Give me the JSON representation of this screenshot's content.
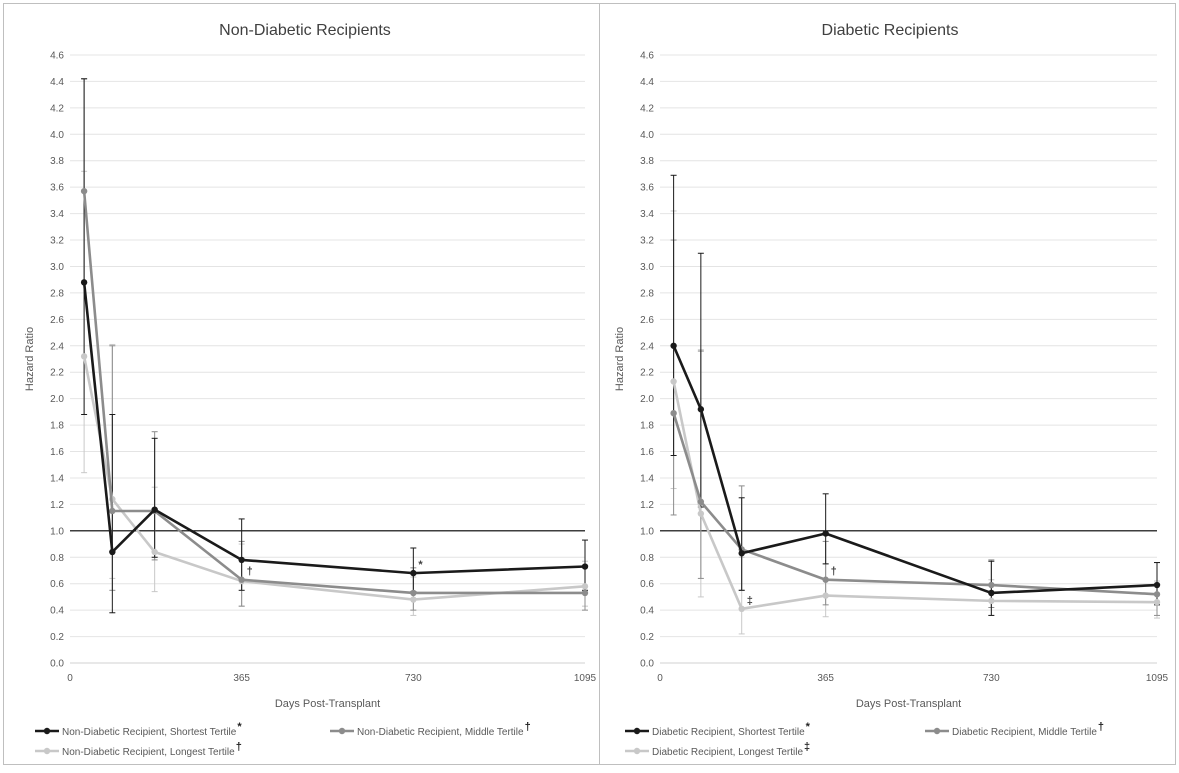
{
  "colors": {
    "shortest": "#1a1a1a",
    "middle": "#8c8c8c",
    "longest": "#c8c8c8",
    "grid": "#e4e4e4",
    "ref_line": "#000000",
    "text": "#595959",
    "title": "#404040",
    "border": "#bfbfbf"
  },
  "chart_data": [
    {
      "type": "line",
      "title": "Non-Diabetic Recipients",
      "xlabel": "Days Post-Transplant",
      "ylabel": "Hazard Ratio",
      "xlim": [
        0,
        1095
      ],
      "ylim": [
        0,
        4.6
      ],
      "xticks": [
        "0",
        "365",
        "730",
        "1095"
      ],
      "yticks": [
        "0.0",
        "0.2",
        "0.4",
        "0.6",
        "0.8",
        "1.0",
        "1.2",
        "1.4",
        "1.6",
        "1.8",
        "2.0",
        "2.2",
        "2.4",
        "2.6",
        "2.8",
        "3.0",
        "3.2",
        "3.4",
        "3.6",
        "3.8",
        "4.0",
        "4.2",
        "4.4",
        "4.6"
      ],
      "reference_line": 1.0,
      "grid": true,
      "legend_position": "bottom",
      "series": [
        {
          "name": "Non-Diabetic Recipient, Shortest Tertile",
          "marker": "*",
          "color_key": "shortest",
          "x": [
            30,
            90,
            180,
            365,
            730,
            1095
          ],
          "y": [
            2.88,
            0.84,
            1.16,
            0.78,
            0.68,
            0.73
          ],
          "err_low": [
            1.88,
            0.38,
            0.8,
            0.55,
            0.54,
            0.55
          ],
          "err_high": [
            4.42,
            1.88,
            1.7,
            1.09,
            0.87,
            0.93
          ]
        },
        {
          "name": "Non-Diabetic Recipient, Middle Tertile",
          "marker": "†",
          "color_key": "middle",
          "x": [
            30,
            90,
            180,
            365,
            730,
            1095
          ],
          "y": [
            3.57,
            1.15,
            1.15,
            0.63,
            0.53,
            0.53
          ],
          "err_low": [
            2.88,
            0.55,
            0.78,
            0.43,
            0.4,
            0.4
          ],
          "err_high": [
            4.42,
            2.4,
            1.75,
            0.92,
            0.72,
            0.72
          ]
        },
        {
          "name": "Non-Diabetic Recipient, Longest Tertile",
          "marker": "†",
          "color_key": "longest",
          "x": [
            30,
            90,
            180,
            365,
            730,
            1095
          ],
          "y": [
            2.32,
            1.24,
            0.84,
            0.62,
            0.48,
            0.58
          ],
          "err_low": [
            1.44,
            0.64,
            0.54,
            0.43,
            0.36,
            0.43
          ],
          "err_high": [
            3.72,
            2.41,
            1.33,
            0.9,
            0.65,
            0.77
          ]
        }
      ],
      "annotations": [
        {
          "text": "†",
          "x": 365,
          "y": 0.63,
          "series": "middle"
        },
        {
          "text": "*",
          "x": 730,
          "y": 0.68,
          "series": "shortest"
        }
      ]
    },
    {
      "type": "line",
      "title": "Diabetic Recipients",
      "xlabel": "Days Post-Transplant",
      "ylabel": "Hazard Ratio",
      "xlim": [
        0,
        1095
      ],
      "ylim": [
        0,
        4.6
      ],
      "xticks": [
        "0",
        "365",
        "730",
        "1095"
      ],
      "yticks": [
        "0.0",
        "0.2",
        "0.4",
        "0.6",
        "0.8",
        "1.0",
        "1.2",
        "1.4",
        "1.6",
        "1.8",
        "2.0",
        "2.2",
        "2.4",
        "2.6",
        "2.8",
        "3.0",
        "3.2",
        "3.4",
        "3.6",
        "3.8",
        "4.0",
        "4.2",
        "4.4",
        "4.6"
      ],
      "reference_line": 1.0,
      "grid": true,
      "legend_position": "bottom",
      "series": [
        {
          "name": "Diabetic Recipient, Shortest Tertile",
          "marker": "*",
          "color_key": "shortest",
          "x": [
            30,
            90,
            180,
            365,
            730,
            1095
          ],
          "y": [
            2.4,
            1.92,
            0.83,
            0.98,
            0.53,
            0.59
          ],
          "err_low": [
            1.57,
            1.18,
            0.55,
            0.75,
            0.36,
            0.44
          ],
          "err_high": [
            3.69,
            3.1,
            1.25,
            1.28,
            0.77,
            0.76
          ]
        },
        {
          "name": "Diabetic Recipient, Middle Tertile",
          "marker": "†",
          "color_key": "middle",
          "x": [
            30,
            90,
            180,
            365,
            730,
            1095
          ],
          "y": [
            1.89,
            1.22,
            0.86,
            0.63,
            0.59,
            0.52
          ],
          "err_low": [
            1.12,
            0.64,
            0.55,
            0.44,
            0.42,
            0.36
          ],
          "err_high": [
            3.2,
            2.36,
            1.34,
            0.92,
            0.78,
            0.76
          ]
        },
        {
          "name": "Diabetic Recipient, Longest Tertile",
          "marker": "‡",
          "color_key": "longest",
          "x": [
            30,
            90,
            180,
            365,
            730,
            1095
          ],
          "y": [
            2.13,
            1.13,
            0.41,
            0.51,
            0.47,
            0.46
          ],
          "err_low": [
            1.32,
            0.5,
            0.22,
            0.35,
            0.36,
            0.34
          ],
          "err_high": [
            3.42,
            2.37,
            0.8,
            0.75,
            0.63,
            0.62
          ]
        }
      ],
      "annotations": [
        {
          "text": "‡",
          "x": 180,
          "y": 0.41,
          "series": "longest"
        },
        {
          "text": "†",
          "x": 365,
          "y": 0.63,
          "series": "middle"
        }
      ]
    }
  ]
}
